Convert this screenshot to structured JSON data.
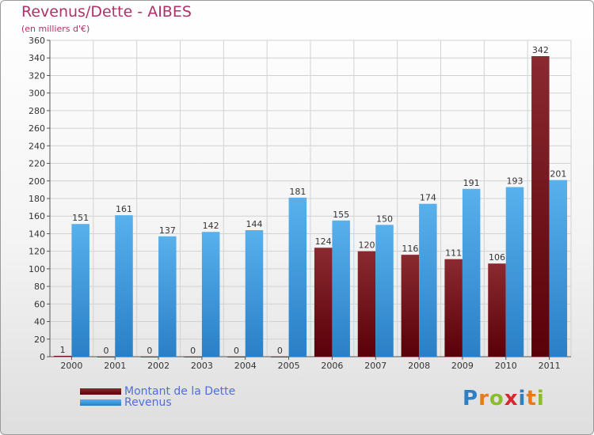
{
  "chart_data": {
    "type": "bar",
    "title": "Revenus/Dette - AIBES",
    "subtitle": "(en milliers d'€)",
    "categories": [
      "2000",
      "2001",
      "2002",
      "2003",
      "2004",
      "2005",
      "2006",
      "2007",
      "2008",
      "2009",
      "2010",
      "2011"
    ],
    "series": [
      {
        "name": "Montant de la Dette",
        "color": "#6b0f12",
        "values": [
          1,
          0,
          0,
          0,
          0,
          0,
          124,
          120,
          116,
          111,
          106,
          342
        ]
      },
      {
        "name": "Revenus",
        "color": "#3a9ee0",
        "values": [
          151,
          161,
          137,
          142,
          144,
          181,
          155,
          150,
          174,
          191,
          193,
          201
        ]
      }
    ],
    "ylim": [
      0,
      360
    ],
    "ytick_step": 20,
    "grid": true,
    "legend_position": "bottom-left"
  },
  "logo": {
    "letters": [
      {
        "char": "P",
        "color": "#2f7fc2"
      },
      {
        "char": "r",
        "color": "#e87a1c"
      },
      {
        "char": "o",
        "color": "#8bbd2b"
      },
      {
        "char": "x",
        "color": "#d8262c"
      },
      {
        "char": "i",
        "color": "#2f7fc2"
      },
      {
        "char": "t",
        "color": "#e87a1c"
      },
      {
        "char": "i",
        "color": "#8bbd2b"
      }
    ]
  }
}
